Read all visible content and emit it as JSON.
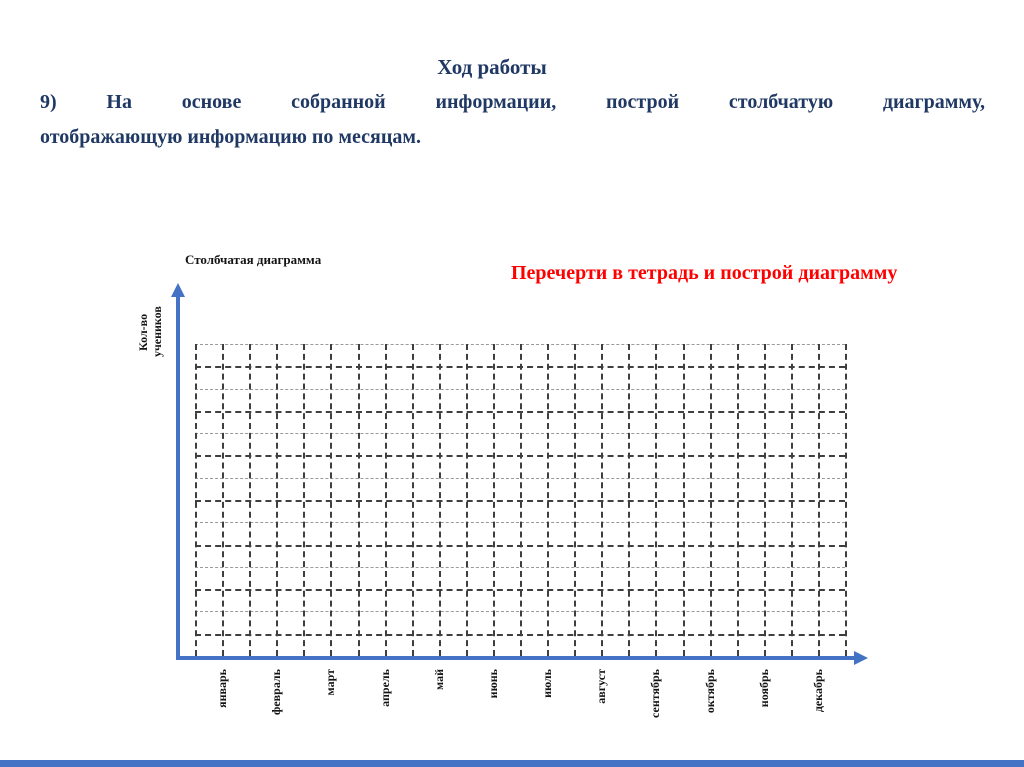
{
  "slide": {
    "title": "Ход работы",
    "body_line1": "9) На основе собранной информации, построй столбчатую диаграмму,",
    "body_line2": "отображающую информацию по месяцам.",
    "instruction": "Перечерти в тетрадь и построй диаграмму",
    "colors": {
      "heading_text": "#1f3864",
      "instruction_text": "#ff0000",
      "axis_blue": "#4472c4",
      "footer_bar": "#4472c4",
      "grid_line_dark": "#3f3f3f",
      "grid_line_light": "#9a9a9a"
    }
  },
  "chart": {
    "title": "Столбчатая диаграмма",
    "y_axis_label": "Кол-во учеников",
    "months": [
      "январь",
      "февраль",
      "март",
      "апрель",
      "май",
      "июнь",
      "июль",
      "август",
      "сентябрь",
      "октябрь",
      "ноябрь",
      "декабрь"
    ],
    "grid": {
      "rows": 14,
      "cols": 24
    }
  },
  "chart_data": {
    "type": "bar",
    "title": "Столбчатая диаграмма",
    "categories": [
      "январь",
      "февраль",
      "март",
      "апрель",
      "май",
      "июнь",
      "июль",
      "август",
      "сентябрь",
      "октябрь",
      "ноябрь",
      "декабрь"
    ],
    "values": [
      null,
      null,
      null,
      null,
      null,
      null,
      null,
      null,
      null,
      null,
      null,
      null
    ],
    "xlabel": "",
    "ylabel": "Кол-во учеников",
    "grid": "on",
    "legend": "none"
  }
}
